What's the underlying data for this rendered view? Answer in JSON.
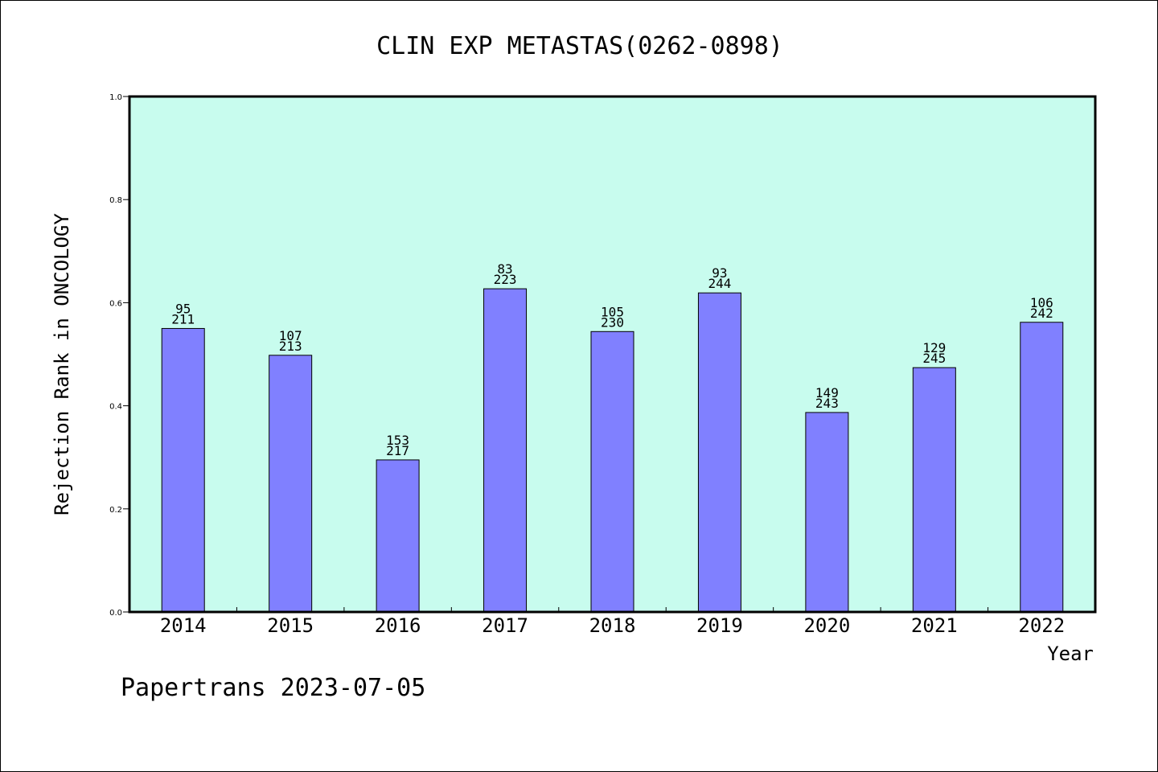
{
  "chart_data": {
    "type": "bar",
    "title": "CLIN EXP METASTAS(0262-0898)",
    "xlabel": "Year",
    "ylabel": "Rejection Rank in ONCOLOGY",
    "ylim": [
      0,
      1.0
    ],
    "yticks": [
      "0.0",
      "0.2",
      "0.4",
      "0.6",
      "0.8",
      "1.0"
    ],
    "categories": [
      "2014",
      "2015",
      "2016",
      "2017",
      "2018",
      "2019",
      "2020",
      "2021",
      "2022"
    ],
    "values": [
      0.55,
      0.498,
      0.295,
      0.627,
      0.544,
      0.619,
      0.387,
      0.474,
      0.562
    ],
    "rank": [
      "95",
      "107",
      "153",
      "83",
      "105",
      "93",
      "149",
      "129",
      "106"
    ],
    "total": [
      "211",
      "213",
      "217",
      "223",
      "230",
      "244",
      "243",
      "245",
      "242"
    ],
    "grid": false,
    "colors": {
      "plot_background": "#c8fcee",
      "bar_fill": "#8080ff",
      "bar_stroke": "#000000"
    }
  },
  "footer": {
    "text": "Papertrans 2023-07-05"
  }
}
